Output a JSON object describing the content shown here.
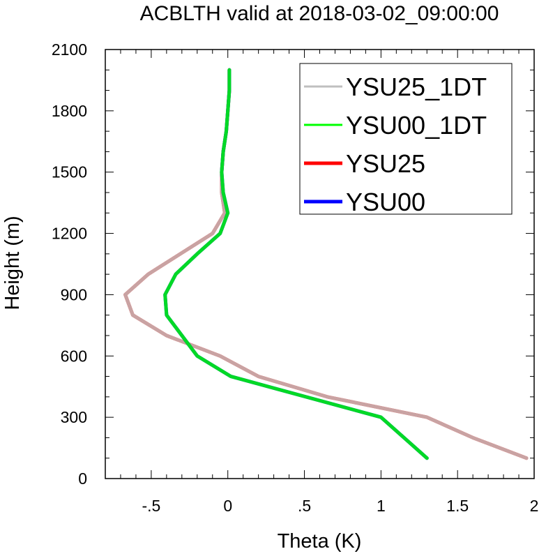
{
  "chart_data": {
    "type": "line",
    "title": "ACBLTH valid at 2018-03-02_09:00:00",
    "xlabel": "Theta (K)",
    "ylabel": "Height (m)",
    "xlim": [
      -0.8,
      2.0
    ],
    "ylim": [
      0,
      2100
    ],
    "x_ticks": [
      -0.5,
      0,
      0.5,
      1,
      1.5,
      2
    ],
    "x_tick_labels": [
      "-.5",
      "0",
      ".5",
      "1",
      "1.5",
      "2"
    ],
    "y_ticks": [
      0,
      300,
      600,
      900,
      1200,
      1500,
      1800,
      2100
    ],
    "y_tick_labels": [
      "0",
      "300",
      "600",
      "900",
      "1200",
      "1500",
      "1800",
      "2100"
    ],
    "grid": false,
    "legend_position": "top-right",
    "series": [
      {
        "name": "YSU25_1DT",
        "color": "#bfbfbf",
        "points": [
          [
            1.95,
            100
          ],
          [
            1.6,
            200
          ],
          [
            1.3,
            300
          ],
          [
            0.65,
            400
          ],
          [
            0.2,
            500
          ],
          [
            -0.05,
            600
          ],
          [
            -0.4,
            700
          ],
          [
            -0.62,
            800
          ],
          [
            -0.67,
            900
          ],
          [
            -0.52,
            1000
          ],
          [
            -0.1,
            1200
          ],
          [
            -0.02,
            1300
          ],
          [
            -0.04,
            1400
          ],
          [
            -0.04,
            1500
          ],
          [
            -0.03,
            1600
          ],
          [
            -0.01,
            1700
          ],
          [
            0.0,
            1800
          ],
          [
            0.01,
            1900
          ],
          [
            0.01,
            2000
          ]
        ]
      },
      {
        "name": "YSU00_1DT",
        "color": "#00ff00",
        "points": [
          [
            1.3,
            100
          ],
          [
            1.0,
            300
          ],
          [
            0.02,
            500
          ],
          [
            -0.2,
            600
          ],
          [
            -0.4,
            800
          ],
          [
            -0.41,
            900
          ],
          [
            -0.34,
            1000
          ],
          [
            -0.2,
            1100
          ],
          [
            -0.05,
            1200
          ],
          [
            0.0,
            1300
          ],
          [
            -0.03,
            1400
          ],
          [
            -0.04,
            1500
          ],
          [
            -0.03,
            1600
          ],
          [
            -0.01,
            1700
          ],
          [
            0.0,
            1800
          ],
          [
            0.01,
            1900
          ],
          [
            0.01,
            2000
          ]
        ]
      },
      {
        "name": "YSU25",
        "color": "#ff0000",
        "points": [
          [
            1.95,
            100
          ],
          [
            1.6,
            200
          ],
          [
            1.3,
            300
          ],
          [
            0.65,
            400
          ],
          [
            0.2,
            500
          ],
          [
            -0.05,
            600
          ],
          [
            -0.4,
            700
          ],
          [
            -0.62,
            800
          ],
          [
            -0.67,
            900
          ],
          [
            -0.52,
            1000
          ],
          [
            -0.1,
            1200
          ],
          [
            -0.02,
            1300
          ],
          [
            -0.04,
            1400
          ],
          [
            -0.04,
            1500
          ],
          [
            -0.03,
            1600
          ],
          [
            -0.01,
            1700
          ],
          [
            0.0,
            1800
          ],
          [
            0.01,
            1900
          ],
          [
            0.01,
            2000
          ]
        ]
      },
      {
        "name": "YSU00",
        "color": "#0000ff",
        "points": [
          [
            1.3,
            100
          ],
          [
            1.0,
            300
          ],
          [
            0.02,
            500
          ],
          [
            -0.2,
            600
          ],
          [
            -0.4,
            800
          ],
          [
            -0.41,
            900
          ],
          [
            -0.34,
            1000
          ],
          [
            -0.2,
            1100
          ],
          [
            -0.05,
            1200
          ],
          [
            0.0,
            1300
          ],
          [
            -0.03,
            1400
          ],
          [
            -0.04,
            1500
          ],
          [
            -0.03,
            1600
          ],
          [
            -0.01,
            1700
          ],
          [
            0.0,
            1800
          ],
          [
            0.01,
            1900
          ],
          [
            0.01,
            2000
          ]
        ]
      }
    ]
  }
}
